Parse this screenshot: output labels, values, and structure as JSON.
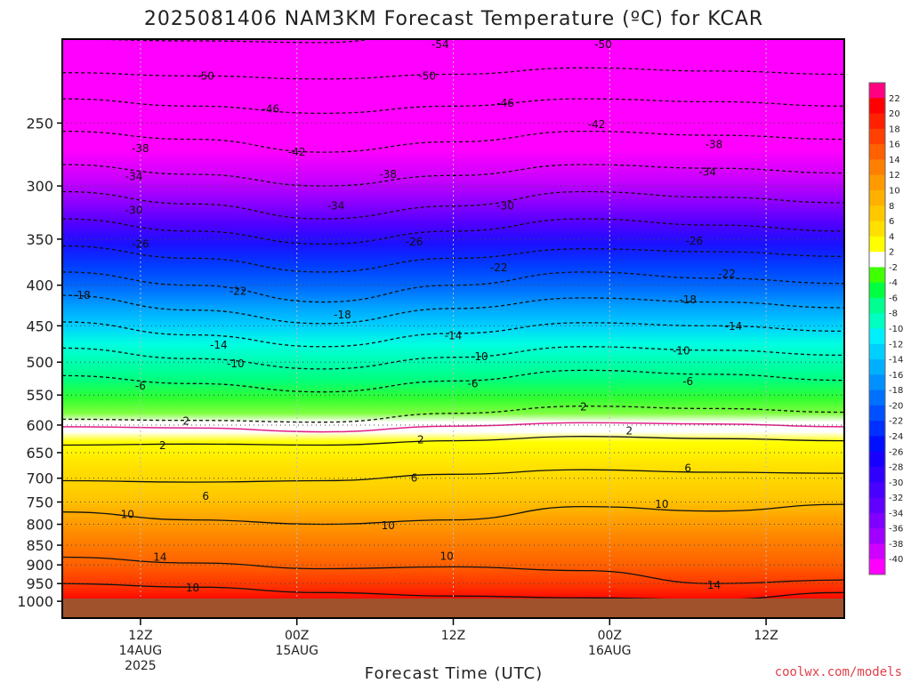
{
  "chart_data": {
    "type": "heatmap",
    "title": "2025081406 NAM3KM Forecast Temperature (ºC) for KCAR",
    "xlabel": "Forecast Time (UTC)",
    "ylabel": "",
    "credit": "coolwx.com/models",
    "y_axis": {
      "scale": "log",
      "inverted": true,
      "ticks": [
        "250",
        "300",
        "350",
        "400",
        "450",
        "500",
        "550",
        "600",
        "650",
        "700",
        "750",
        "800",
        "850",
        "900",
        "950",
        "1000"
      ]
    },
    "x_axis": {
      "ticks": [
        {
          "hour": 6,
          "lines": [
            "12Z",
            "14AUG",
            "2025"
          ]
        },
        {
          "hour": 18,
          "lines": [
            "00Z",
            "15AUG"
          ]
        },
        {
          "hour": 30,
          "lines": [
            "12Z"
          ]
        },
        {
          "hour": 42,
          "lines": [
            "00Z",
            "16AUG"
          ]
        },
        {
          "hour": 54,
          "lines": [
            "12Z"
          ]
        }
      ],
      "range_hours": [
        0,
        60
      ]
    },
    "colorbar": {
      "labels": [
        "22",
        "20",
        "18",
        "16",
        "14",
        "12",
        "10",
        "8",
        "6",
        "4",
        "2",
        "-2",
        "-4",
        "-6",
        "-8",
        "-10",
        "-12",
        "-14",
        "-16",
        "-18",
        "-20",
        "-22",
        "-24",
        "-26",
        "-28",
        "-30",
        "-32",
        "-34",
        "-36",
        "-38",
        "-40"
      ],
      "colors": [
        "#ff0080",
        "#ff0000",
        "#ff2000",
        "#ff4000",
        "#ff6000",
        "#ff8000",
        "#ff9a00",
        "#ffb000",
        "#ffc800",
        "#ffe000",
        "#ffff00",
        "#ffffff",
        "#40ff00",
        "#00ff40",
        "#00ff90",
        "#00ffc0",
        "#00f0ff",
        "#00d0ff",
        "#00b0ff",
        "#0090ff",
        "#0070ff",
        "#0050ff",
        "#0030ff",
        "#0010ff",
        "#1800ff",
        "#3000ff",
        "#4800ff",
        "#6000ff",
        "#8000ff",
        "#a000ff",
        "#d000ff",
        "#ff00ff"
      ]
    },
    "isotherms": [
      {
        "label": "-54",
        "series": [
          [
            0,
            196
          ],
          [
            10,
            197
          ],
          [
            20,
            198
          ],
          [
            30,
            190
          ],
          [
            40,
            188
          ],
          [
            50,
            191
          ],
          [
            60,
            193
          ]
        ],
        "dashed": true
      },
      {
        "label": "-50",
        "series": [
          [
            0,
            216
          ],
          [
            10,
            218
          ],
          [
            20,
            220
          ],
          [
            30,
            217
          ],
          [
            40,
            213
          ],
          [
            50,
            215
          ],
          [
            60,
            217
          ]
        ],
        "dashed": true
      },
      {
        "label": "-46",
        "series": [
          [
            0,
            233
          ],
          [
            10,
            238
          ],
          [
            20,
            243
          ],
          [
            30,
            238
          ],
          [
            40,
            233
          ],
          [
            50,
            235
          ],
          [
            60,
            238
          ]
        ],
        "dashed": true
      },
      {
        "label": "-42",
        "series": [
          [
            0,
            256
          ],
          [
            10,
            262
          ],
          [
            20,
            272
          ],
          [
            30,
            264
          ],
          [
            40,
            256
          ],
          [
            50,
            259
          ],
          [
            60,
            262
          ]
        ],
        "dashed": true
      },
      {
        "label": "-38",
        "series": [
          [
            0,
            282
          ],
          [
            10,
            290
          ],
          [
            20,
            300
          ],
          [
            30,
            291
          ],
          [
            40,
            282
          ],
          [
            50,
            285
          ],
          [
            60,
            289
          ]
        ],
        "dashed": true
      },
      {
        "label": "-34",
        "series": [
          [
            0,
            305
          ],
          [
            10,
            316
          ],
          [
            20,
            330
          ],
          [
            30,
            318
          ],
          [
            40,
            305
          ],
          [
            50,
            310
          ],
          [
            60,
            315
          ]
        ],
        "dashed": true
      },
      {
        "label": "-30",
        "series": [
          [
            0,
            330
          ],
          [
            10,
            342
          ],
          [
            20,
            355
          ],
          [
            30,
            342
          ],
          [
            40,
            330
          ],
          [
            50,
            336
          ],
          [
            60,
            342
          ]
        ],
        "dashed": true
      },
      {
        "label": "-26",
        "series": [
          [
            0,
            357
          ],
          [
            10,
            370
          ],
          [
            20,
            385
          ],
          [
            30,
            370
          ],
          [
            40,
            360
          ],
          [
            50,
            363
          ],
          [
            60,
            368
          ]
        ],
        "dashed": true
      },
      {
        "label": "-22",
        "series": [
          [
            0,
            385
          ],
          [
            10,
            400
          ],
          [
            20,
            420
          ],
          [
            30,
            400
          ],
          [
            40,
            385
          ],
          [
            50,
            392
          ],
          [
            60,
            398
          ]
        ],
        "dashed": true
      },
      {
        "label": "-18",
        "series": [
          [
            0,
            412
          ],
          [
            10,
            430
          ],
          [
            20,
            447
          ],
          [
            30,
            428
          ],
          [
            40,
            415
          ],
          [
            50,
            420
          ],
          [
            60,
            427
          ]
        ],
        "dashed": true
      },
      {
        "label": "-14",
        "series": [
          [
            0,
            445
          ],
          [
            10,
            462
          ],
          [
            20,
            478
          ],
          [
            30,
            460
          ],
          [
            40,
            446
          ],
          [
            50,
            450
          ],
          [
            60,
            457
          ]
        ],
        "dashed": true
      },
      {
        "label": "-10",
        "series": [
          [
            0,
            480
          ],
          [
            10,
            495
          ],
          [
            20,
            510
          ],
          [
            30,
            493
          ],
          [
            40,
            478
          ],
          [
            50,
            483
          ],
          [
            60,
            490
          ]
        ],
        "dashed": true
      },
      {
        "label": "-6",
        "series": [
          [
            0,
            520
          ],
          [
            10,
            532
          ],
          [
            20,
            545
          ],
          [
            30,
            528
          ],
          [
            40,
            512
          ],
          [
            50,
            518
          ],
          [
            60,
            527
          ]
        ],
        "dashed": true
      },
      {
        "label": "2",
        "series": [
          [
            0,
            590
          ],
          [
            10,
            592
          ],
          [
            20,
            595
          ],
          [
            30,
            580
          ],
          [
            40,
            568
          ],
          [
            50,
            572
          ],
          [
            60,
            578
          ]
        ],
        "dashed": true
      },
      {
        "label": "",
        "series": [
          [
            0,
            603
          ],
          [
            10,
            605
          ],
          [
            20,
            612
          ],
          [
            30,
            602
          ],
          [
            40,
            596
          ],
          [
            50,
            598
          ],
          [
            60,
            603
          ]
        ],
        "magenta": true
      },
      {
        "label": "2",
        "series": [
          [
            0,
            636
          ],
          [
            10,
            634
          ],
          [
            20,
            636
          ],
          [
            30,
            628
          ],
          [
            40,
            620
          ],
          [
            50,
            624
          ],
          [
            60,
            628
          ]
        ],
        "dashed": false
      },
      {
        "label": "6",
        "series": [
          [
            0,
            705
          ],
          [
            10,
            708
          ],
          [
            20,
            705
          ],
          [
            30,
            692
          ],
          [
            40,
            683
          ],
          [
            50,
            688
          ],
          [
            60,
            690
          ]
        ],
        "dashed": false
      },
      {
        "label": "10",
        "series": [
          [
            0,
            772
          ],
          [
            10,
            790
          ],
          [
            20,
            800
          ],
          [
            30,
            790
          ],
          [
            40,
            760
          ],
          [
            50,
            770
          ],
          [
            60,
            755
          ]
        ],
        "dashed": false
      },
      {
        "label": "14",
        "series": [
          [
            0,
            880
          ],
          [
            10,
            895
          ],
          [
            20,
            910
          ],
          [
            30,
            905
          ],
          [
            40,
            915
          ],
          [
            50,
            950
          ],
          [
            60,
            940
          ]
        ],
        "dashed": false
      },
      {
        "label": "18",
        "series": [
          [
            0,
            950
          ],
          [
            10,
            960
          ],
          [
            20,
            975
          ],
          [
            30,
            985
          ],
          [
            40,
            990
          ],
          [
            50,
            995
          ],
          [
            60,
            975
          ]
        ],
        "dashed": false
      }
    ],
    "contour_labels": [
      {
        "t": 11,
        "p": 218,
        "text": "-50"
      },
      {
        "t": 29,
        "p": 199,
        "text": "-54"
      },
      {
        "t": 28,
        "p": 218,
        "text": "-50"
      },
      {
        "t": 41.5,
        "p": 199,
        "text": "-50"
      },
      {
        "t": 16,
        "p": 240,
        "text": "-46"
      },
      {
        "t": 34,
        "p": 236,
        "text": "-46"
      },
      {
        "t": 41,
        "p": 251,
        "text": "-42"
      },
      {
        "t": 18,
        "p": 272,
        "text": "-42"
      },
      {
        "t": 6,
        "p": 269,
        "text": "-38"
      },
      {
        "t": 50,
        "p": 266,
        "text": "-38"
      },
      {
        "t": 25,
        "p": 290,
        "text": "-38"
      },
      {
        "t": 5.5,
        "p": 292,
        "text": "-34"
      },
      {
        "t": 49.5,
        "p": 288,
        "text": "-34"
      },
      {
        "t": 21,
        "p": 318,
        "text": "-34"
      },
      {
        "t": 5.5,
        "p": 322,
        "text": "-30"
      },
      {
        "t": 34,
        "p": 318,
        "text": "-30"
      },
      {
        "t": 6,
        "p": 355,
        "text": "-26"
      },
      {
        "t": 27,
        "p": 353,
        "text": "-26"
      },
      {
        "t": 48.5,
        "p": 352,
        "text": "-26"
      },
      {
        "t": 33.5,
        "p": 380,
        "text": "-22"
      },
      {
        "t": 51,
        "p": 387,
        "text": "-22"
      },
      {
        "t": 13.5,
        "p": 407,
        "text": "-22"
      },
      {
        "t": 1.5,
        "p": 412,
        "text": "-18"
      },
      {
        "t": 48,
        "p": 417,
        "text": "-18"
      },
      {
        "t": 21.5,
        "p": 436,
        "text": "-18"
      },
      {
        "t": 30,
        "p": 463,
        "text": "-14"
      },
      {
        "t": 51.5,
        "p": 451,
        "text": "-14"
      },
      {
        "t": 12,
        "p": 476,
        "text": "-14"
      },
      {
        "t": 32,
        "p": 492,
        "text": "-10"
      },
      {
        "t": 47.5,
        "p": 484,
        "text": "-10"
      },
      {
        "t": 13.3,
        "p": 502,
        "text": "-10"
      },
      {
        "t": 31.5,
        "p": 532,
        "text": "-6"
      },
      {
        "t": 48,
        "p": 529,
        "text": "-6"
      },
      {
        "t": 6,
        "p": 536,
        "text": "-6"
      },
      {
        "t": 40,
        "p": 569,
        "text": "2"
      },
      {
        "t": 9.5,
        "p": 593,
        "text": "2"
      },
      {
        "t": 43.5,
        "p": 610,
        "text": "2"
      },
      {
        "t": 27.5,
        "p": 626,
        "text": "2"
      },
      {
        "t": 7.7,
        "p": 637,
        "text": "2"
      },
      {
        "t": 48,
        "p": 680,
        "text": "6"
      },
      {
        "t": 27,
        "p": 700,
        "text": "6"
      },
      {
        "t": 11,
        "p": 738,
        "text": "6"
      },
      {
        "t": 46,
        "p": 755,
        "text": "10"
      },
      {
        "t": 5,
        "p": 778,
        "text": "10"
      },
      {
        "t": 25,
        "p": 803,
        "text": "10"
      },
      {
        "t": 29.5,
        "p": 878,
        "text": "10"
      },
      {
        "t": 7.5,
        "p": 880,
        "text": "14"
      },
      {
        "t": 50,
        "p": 954,
        "text": "14"
      },
      {
        "t": 10,
        "p": 962,
        "text": "18"
      }
    ]
  }
}
